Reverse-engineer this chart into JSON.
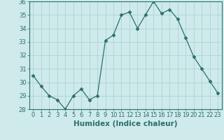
{
  "x": [
    0,
    1,
    2,
    3,
    4,
    5,
    6,
    7,
    8,
    9,
    10,
    11,
    12,
    13,
    14,
    15,
    16,
    17,
    18,
    19,
    20,
    21,
    22,
    23
  ],
  "y": [
    30.5,
    29.7,
    29.0,
    28.7,
    28.0,
    29.0,
    29.5,
    28.7,
    29.0,
    33.1,
    33.5,
    35.0,
    35.2,
    34.0,
    35.0,
    36.0,
    35.1,
    35.4,
    34.7,
    33.3,
    31.9,
    31.0,
    30.1,
    29.2
  ],
  "line_color": "#2d6e6e",
  "marker": "D",
  "marker_size": 2.5,
  "bg_color": "#ceeaea",
  "grid_color": "#aacfcf",
  "xlabel": "Humidex (Indice chaleur)",
  "ylim": [
    28,
    36
  ],
  "xlim_min": -0.5,
  "xlim_max": 23.5,
  "yticks": [
    28,
    29,
    30,
    31,
    32,
    33,
    34,
    35,
    36
  ],
  "xticks": [
    0,
    1,
    2,
    3,
    4,
    5,
    6,
    7,
    8,
    9,
    10,
    11,
    12,
    13,
    14,
    15,
    16,
    17,
    18,
    19,
    20,
    21,
    22,
    23
  ],
  "tick_label_fontsize": 6,
  "xlabel_fontsize": 7.5,
  "tick_color": "#2d6e6e",
  "axes_color": "#2d6e6e"
}
